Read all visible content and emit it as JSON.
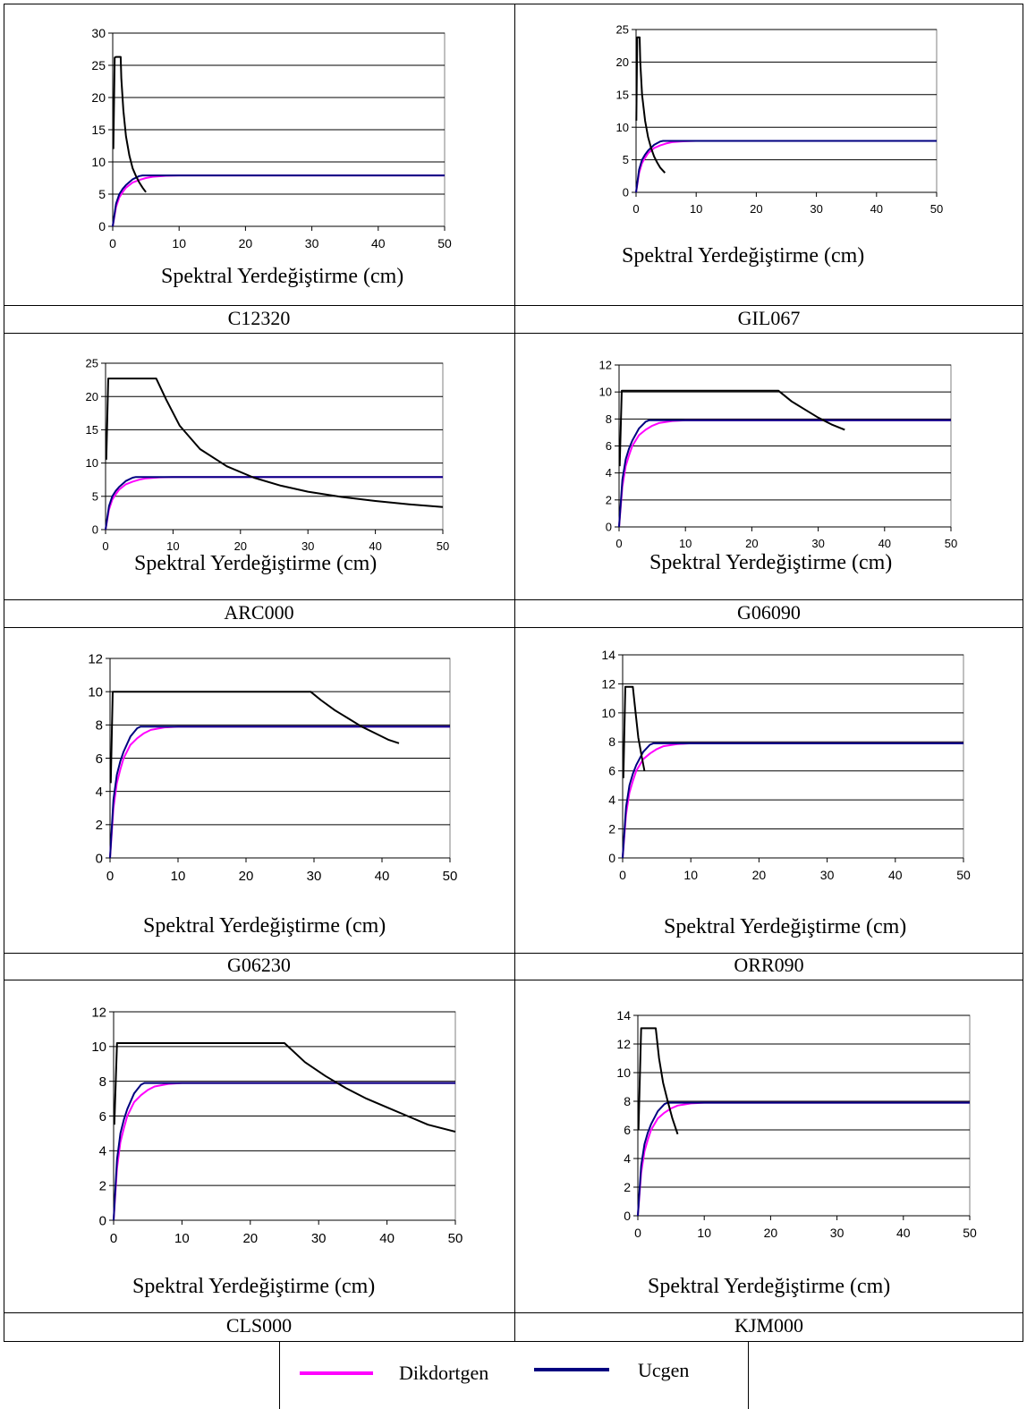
{
  "legend": [
    {
      "label": "Dikdortgen",
      "color": "#ff00ff"
    },
    {
      "label": "Ucgen",
      "color": "#000080"
    }
  ],
  "colors": {
    "demand": "#000000",
    "grid": "#000000"
  },
  "chart_data": [
    {
      "id": "C12320",
      "caption": "C12320",
      "type": "line",
      "xlabel": "Spektral Yerdeğiştirme (cm)",
      "xlim": [
        0,
        50
      ],
      "xticks": [
        0,
        10,
        20,
        30,
        40,
        50
      ],
      "ylim": [
        0,
        30
      ],
      "yticks": [
        0,
        5,
        10,
        15,
        20,
        25,
        30
      ],
      "series": [
        {
          "name": "Dikdortgen",
          "color": "#ff00ff",
          "x": [
            0,
            0.5,
            1,
            1.5,
            2,
            3,
            4,
            5,
            6,
            8,
            10,
            50
          ],
          "y": [
            0,
            3,
            4.5,
            5.3,
            6,
            6.8,
            7.2,
            7.5,
            7.7,
            7.85,
            7.9,
            7.9
          ]
        },
        {
          "name": "Ucgen",
          "color": "#000080",
          "x": [
            0,
            0.5,
            1,
            1.5,
            2,
            3,
            4,
            4.5,
            50
          ],
          "y": [
            0,
            3.5,
            5,
            5.8,
            6.4,
            7.3,
            7.8,
            7.9,
            7.9
          ]
        },
        {
          "color": "#000000",
          "x": [
            0.1,
            0.3,
            0.5,
            1.2,
            1.3,
            1.6,
            2,
            2.5,
            3,
            3.5,
            4,
            4.5,
            5
          ],
          "y": [
            12,
            26.2,
            26.3,
            26.3,
            23,
            18,
            14,
            11,
            9,
            7.8,
            6.8,
            6,
            5.3
          ]
        }
      ]
    },
    {
      "id": "GIL067",
      "caption": "GIL067",
      "type": "line",
      "xlabel": "Spektral Yerdeğiştirme (cm)",
      "xlim": [
        0,
        50
      ],
      "xticks": [
        0,
        10,
        20,
        30,
        40,
        50
      ],
      "ylim": [
        0,
        25
      ],
      "yticks": [
        0,
        5,
        10,
        15,
        20,
        25
      ],
      "series": [
        {
          "name": "Dikdortgen",
          "color": "#ff00ff",
          "x": [
            0,
            0.5,
            1,
            1.5,
            2,
            3,
            4,
            5,
            6,
            8,
            10,
            50
          ],
          "y": [
            0,
            3,
            4.5,
            5.3,
            6,
            6.8,
            7.2,
            7.5,
            7.7,
            7.85,
            7.9,
            7.9
          ]
        },
        {
          "name": "Ucgen",
          "color": "#000080",
          "x": [
            0,
            0.5,
            1,
            1.5,
            2,
            3,
            4,
            4.5,
            50
          ],
          "y": [
            0,
            3.5,
            5,
            5.8,
            6.4,
            7.3,
            7.8,
            7.9,
            7.9
          ]
        },
        {
          "color": "#000000",
          "x": [
            0.05,
            0.2,
            0.6,
            0.7,
            1,
            1.5,
            2,
            2.5,
            3,
            3.5,
            4,
            4.8
          ],
          "y": [
            11,
            23.8,
            23.8,
            20,
            15,
            11,
            8.5,
            6.8,
            5.5,
            4.6,
            3.8,
            3
          ]
        }
      ]
    },
    {
      "id": "ARC000",
      "caption": "ARC000",
      "type": "line",
      "xlabel": "Spektral Yerdeğiştirme (cm)",
      "xlim": [
        0,
        50
      ],
      "xticks": [
        0,
        10,
        20,
        30,
        40,
        50
      ],
      "ylim": [
        0,
        25
      ],
      "yticks": [
        0,
        5,
        10,
        15,
        20,
        25
      ],
      "series": [
        {
          "name": "Dikdortgen",
          "color": "#ff00ff",
          "x": [
            0,
            0.5,
            1,
            1.5,
            2,
            3,
            4,
            5,
            6,
            8,
            10,
            50
          ],
          "y": [
            0,
            3,
            4.5,
            5.3,
            6,
            6.8,
            7.2,
            7.5,
            7.7,
            7.85,
            7.9,
            7.9
          ]
        },
        {
          "name": "Ucgen",
          "color": "#000080",
          "x": [
            0,
            0.5,
            1,
            1.5,
            2,
            3,
            4,
            4.5,
            50
          ],
          "y": [
            0,
            3.5,
            5,
            5.8,
            6.4,
            7.3,
            7.8,
            7.9,
            7.9
          ]
        },
        {
          "color": "#000000",
          "x": [
            0.1,
            0.4,
            7.5,
            9,
            11,
            14,
            18,
            22,
            26,
            30,
            35,
            40,
            45,
            50
          ],
          "y": [
            10.5,
            22.7,
            22.7,
            19.5,
            15.6,
            12.1,
            9.5,
            7.8,
            6.6,
            5.7,
            4.9,
            4.3,
            3.8,
            3.4
          ]
        }
      ]
    },
    {
      "id": "G06090",
      "caption": "G06090",
      "type": "line",
      "xlabel": "Spektral Yerdeğiştirme (cm)",
      "xlim": [
        0,
        50
      ],
      "xticks": [
        0,
        10,
        20,
        30,
        40,
        50
      ],
      "ylim": [
        0,
        12
      ],
      "yticks": [
        0,
        2,
        4,
        6,
        8,
        10,
        12
      ],
      "series": [
        {
          "name": "Dikdortgen",
          "color": "#ff00ff",
          "x": [
            0,
            0.5,
            1,
            1.5,
            2,
            3,
            4,
            5,
            6,
            8,
            10,
            50
          ],
          "y": [
            0,
            3,
            4.5,
            5.3,
            6,
            6.8,
            7.2,
            7.5,
            7.7,
            7.85,
            7.9,
            7.9
          ]
        },
        {
          "name": "Ucgen",
          "color": "#000080",
          "x": [
            0,
            0.5,
            1,
            1.5,
            2,
            3,
            4,
            4.5,
            50
          ],
          "y": [
            0,
            3.5,
            5,
            5.8,
            6.4,
            7.3,
            7.8,
            7.9,
            7.9
          ]
        },
        {
          "color": "#000000",
          "x": [
            0.1,
            0.4,
            24,
            26,
            28,
            30,
            32,
            34
          ],
          "y": [
            4.5,
            10.1,
            10.1,
            9.3,
            8.7,
            8.1,
            7.6,
            7.2
          ]
        }
      ]
    },
    {
      "id": "G06230",
      "caption": "G06230",
      "type": "line",
      "xlabel": "Spektral Yerdeğiştirme (cm)",
      "xlim": [
        0,
        50
      ],
      "xticks": [
        0,
        10,
        20,
        30,
        40,
        50
      ],
      "ylim": [
        0,
        12
      ],
      "yticks": [
        0,
        2,
        4,
        6,
        8,
        10,
        12
      ],
      "series": [
        {
          "name": "Dikdortgen",
          "color": "#ff00ff",
          "x": [
            0,
            0.5,
            1,
            1.5,
            2,
            3,
            4,
            5,
            6,
            8,
            10,
            50
          ],
          "y": [
            0,
            3,
            4.5,
            5.3,
            6,
            6.8,
            7.2,
            7.5,
            7.7,
            7.85,
            7.9,
            7.9
          ]
        },
        {
          "name": "Ucgen",
          "color": "#000080",
          "x": [
            0,
            0.5,
            1,
            1.5,
            2,
            3,
            4,
            4.5,
            50
          ],
          "y": [
            0,
            3.5,
            5,
            5.8,
            6.4,
            7.3,
            7.8,
            7.9,
            7.9
          ]
        },
        {
          "color": "#000000",
          "x": [
            0.1,
            0.4,
            29.5,
            31,
            33,
            35,
            37,
            39,
            41,
            42.5
          ],
          "y": [
            4.5,
            10,
            10,
            9.5,
            8.9,
            8.4,
            7.9,
            7.5,
            7.1,
            6.9
          ]
        }
      ]
    },
    {
      "id": "ORR090",
      "caption": "ORR090",
      "type": "line",
      "xlabel": "Spektral Yerdeğiştirme (cm)",
      "xlim": [
        0,
        50
      ],
      "xticks": [
        0,
        10,
        20,
        30,
        40,
        50
      ],
      "ylim": [
        0,
        14
      ],
      "yticks": [
        0,
        2,
        4,
        6,
        8,
        10,
        12,
        14
      ],
      "series": [
        {
          "name": "Dikdortgen",
          "color": "#ff00ff",
          "x": [
            0,
            0.5,
            1,
            1.5,
            2,
            3,
            4,
            5,
            6,
            8,
            10,
            50
          ],
          "y": [
            0,
            3,
            4.5,
            5.3,
            6,
            6.8,
            7.2,
            7.5,
            7.7,
            7.85,
            7.9,
            7.9
          ]
        },
        {
          "name": "Ucgen",
          "color": "#000080",
          "x": [
            0,
            0.5,
            1,
            1.5,
            2,
            3,
            4,
            4.5,
            50
          ],
          "y": [
            0,
            3.5,
            5,
            5.8,
            6.4,
            7.3,
            7.8,
            7.9,
            7.9
          ]
        },
        {
          "color": "#000000",
          "x": [
            0.1,
            0.4,
            1.5,
            1.9,
            2.3,
            2.8,
            3.2
          ],
          "y": [
            5.5,
            11.8,
            11.8,
            10,
            8.3,
            7,
            6
          ]
        }
      ]
    },
    {
      "id": "CLS000",
      "caption": "CLS000",
      "type": "line",
      "xlabel": "Spektral Yerdeğiştirme (cm)",
      "xlim": [
        0,
        50
      ],
      "xticks": [
        0,
        10,
        20,
        30,
        40,
        50
      ],
      "ylim": [
        0,
        12
      ],
      "yticks": [
        0,
        2,
        4,
        6,
        8,
        10,
        12
      ],
      "series": [
        {
          "name": "Dikdortgen",
          "color": "#ff00ff",
          "x": [
            0,
            0.5,
            1,
            1.5,
            2,
            3,
            4,
            5,
            6,
            8,
            10,
            50
          ],
          "y": [
            0,
            3,
            4.5,
            5.3,
            6,
            6.8,
            7.2,
            7.5,
            7.7,
            7.85,
            7.9,
            7.9
          ]
        },
        {
          "name": "Ucgen",
          "color": "#000080",
          "x": [
            0,
            0.5,
            1,
            1.5,
            2,
            3,
            4,
            4.5,
            50
          ],
          "y": [
            0,
            3.5,
            5,
            5.8,
            6.4,
            7.3,
            7.8,
            7.9,
            7.9
          ]
        },
        {
          "color": "#000000",
          "x": [
            0.1,
            0.5,
            25,
            28,
            31,
            34,
            37,
            40,
            43,
            46,
            50
          ],
          "y": [
            5.5,
            10.2,
            10.2,
            9.1,
            8.3,
            7.6,
            7,
            6.5,
            6,
            5.5,
            5.1
          ]
        }
      ]
    },
    {
      "id": "KJM000",
      "caption": "KJM000",
      "type": "line",
      "xlabel": "Spektral Yerdeğiştirme (cm)",
      "xlim": [
        0,
        50
      ],
      "xticks": [
        0,
        10,
        20,
        30,
        40,
        50
      ],
      "ylim": [
        0,
        14
      ],
      "yticks": [
        0,
        2,
        4,
        6,
        8,
        10,
        12,
        14
      ],
      "series": [
        {
          "name": "Dikdortgen",
          "color": "#ff00ff",
          "x": [
            0,
            0.5,
            1,
            1.5,
            2,
            3,
            4,
            5,
            6,
            8,
            10,
            50
          ],
          "y": [
            0,
            3,
            4.5,
            5.3,
            6,
            6.8,
            7.2,
            7.5,
            7.7,
            7.85,
            7.9,
            7.9
          ]
        },
        {
          "name": "Ucgen",
          "color": "#000080",
          "x": [
            0,
            0.5,
            1,
            1.5,
            2,
            3,
            4,
            4.5,
            50
          ],
          "y": [
            0,
            3.5,
            5,
            5.8,
            6.4,
            7.3,
            7.8,
            7.9,
            7.9
          ]
        },
        {
          "color": "#000000",
          "x": [
            0.1,
            0.5,
            2.7,
            3.2,
            3.8,
            4.5,
            5.2,
            6
          ],
          "y": [
            6,
            13.1,
            13.1,
            11,
            9.3,
            8,
            6.8,
            5.7
          ]
        }
      ]
    }
  ]
}
